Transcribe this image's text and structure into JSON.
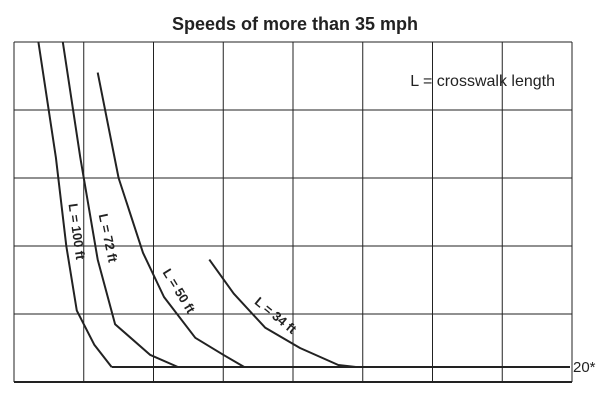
{
  "chart_data": {
    "type": "line",
    "title": "Speeds of more than 35 mph",
    "annotation": "L = crosswalk length",
    "xlabel": "",
    "ylabel": "",
    "grid": true,
    "xlim": [
      0,
      8
    ],
    "ylim": [
      0,
      5
    ],
    "reference_line": {
      "y": 0.22,
      "label": "20*"
    },
    "series": [
      {
        "name": "L = 100 ft",
        "points": [
          [
            0.35,
            5.0
          ],
          [
            0.6,
            3.3
          ],
          [
            0.75,
            2.0
          ],
          [
            0.9,
            1.05
          ],
          [
            1.15,
            0.55
          ],
          [
            1.4,
            0.22
          ]
        ]
      },
      {
        "name": "L = 72 ft",
        "points": [
          [
            0.7,
            5.0
          ],
          [
            0.95,
            3.3
          ],
          [
            1.2,
            1.8
          ],
          [
            1.45,
            0.85
          ],
          [
            1.95,
            0.4
          ],
          [
            2.35,
            0.22
          ]
        ]
      },
      {
        "name": "L = 50 ft",
        "points": [
          [
            1.2,
            4.55
          ],
          [
            1.5,
            3.0
          ],
          [
            1.85,
            1.9
          ],
          [
            2.15,
            1.25
          ],
          [
            2.6,
            0.65
          ],
          [
            3.0,
            0.4
          ],
          [
            3.3,
            0.22
          ]
        ]
      },
      {
        "name": "L = 34 ft",
        "points": [
          [
            2.8,
            1.8
          ],
          [
            3.15,
            1.3
          ],
          [
            3.6,
            0.8
          ],
          [
            4.1,
            0.5
          ],
          [
            4.65,
            0.25
          ],
          [
            4.9,
            0.22
          ]
        ]
      }
    ]
  }
}
